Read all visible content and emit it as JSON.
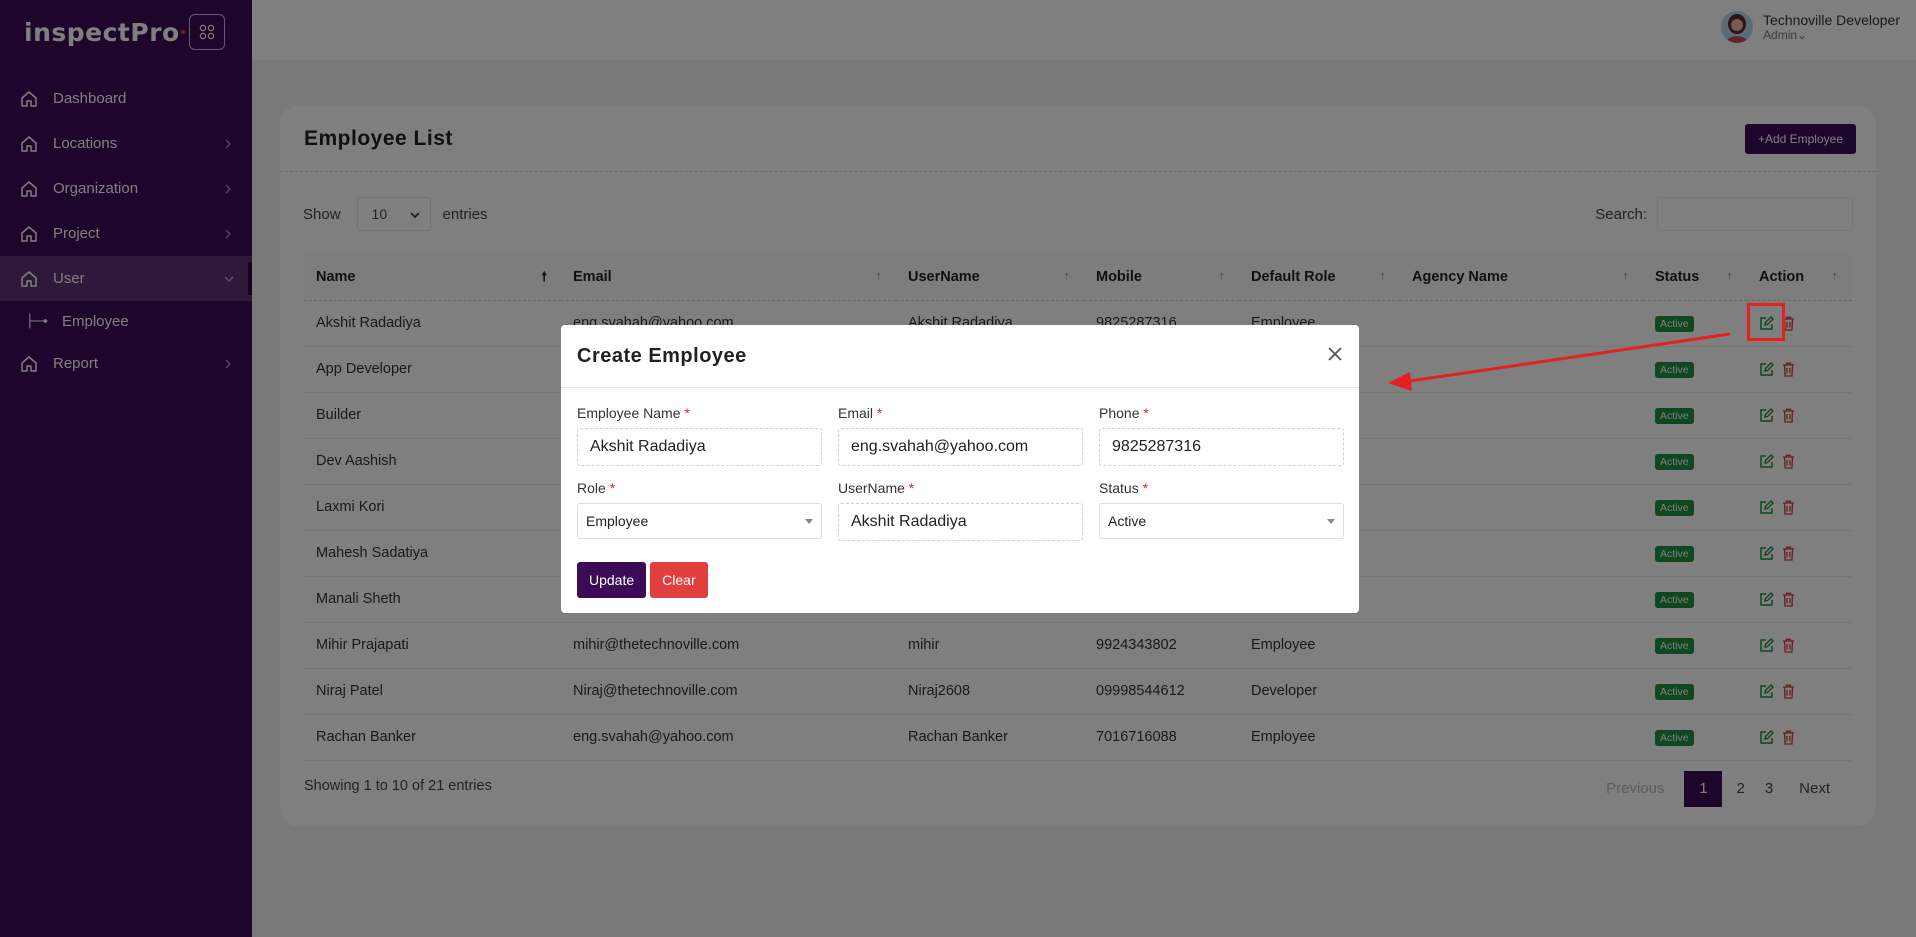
{
  "app": {
    "logo": "inspectPro"
  },
  "sidebar": {
    "items": [
      {
        "label": "Dashboard",
        "icon": "home-icon",
        "has_children": false
      },
      {
        "label": "Locations",
        "icon": "home-icon",
        "has_children": true
      },
      {
        "label": "Organization",
        "icon": "home-icon",
        "has_children": true
      },
      {
        "label": "Project",
        "icon": "home-icon",
        "has_children": true
      },
      {
        "label": "User",
        "icon": "home-icon",
        "has_children": true,
        "expanded": true
      },
      {
        "label": "Report",
        "icon": "home-icon",
        "has_children": true
      }
    ],
    "subitem": {
      "label": "Employee"
    }
  },
  "header": {
    "user_name": "Technoville Developer",
    "user_role": "Admin"
  },
  "page": {
    "title": "Employee List",
    "add_button": "+Add Employee",
    "show_label": "Show",
    "entries_value": "10",
    "entries_label": "entries",
    "search_label": "Search:",
    "columns": [
      "Name",
      "Email",
      "UserName",
      "Mobile",
      "Default Role",
      "Agency Name",
      "Status",
      "Action"
    ],
    "rows": [
      {
        "name": "Akshit Radadiya",
        "email": "eng.svahah@yahoo.com",
        "username": "Akshit Radadiya",
        "mobile": "9825287316",
        "role": "Employee",
        "agency": "",
        "status": "Active"
      },
      {
        "name": "App Developer",
        "email": "",
        "username": "",
        "mobile": "",
        "role": "",
        "agency": "",
        "status": "Active"
      },
      {
        "name": "Builder",
        "email": "",
        "username": "",
        "mobile": "",
        "role": "",
        "agency": "",
        "status": "Active"
      },
      {
        "name": "Dev Aashish",
        "email": "",
        "username": "",
        "mobile": "",
        "role": "",
        "agency": "",
        "status": "Active"
      },
      {
        "name": "Laxmi Kori",
        "email": "",
        "username": "",
        "mobile": "",
        "role": "",
        "agency": "",
        "status": "Active"
      },
      {
        "name": "Mahesh Sadatiya",
        "email": "",
        "username": "",
        "mobile": "",
        "role": "",
        "agency": "",
        "status": "Active"
      },
      {
        "name": "Manali Sheth",
        "email": "",
        "username": "",
        "mobile": "",
        "role": "",
        "agency": "",
        "status": "Active"
      },
      {
        "name": "Mihir Prajapati",
        "email": "mihir@thetechnoville.com",
        "username": "mihir",
        "mobile": "9924343802",
        "role": "Employee",
        "agency": "",
        "status": "Active"
      },
      {
        "name": "Niraj Patel",
        "email": "Niraj@thetechnoville.com",
        "username": "Niraj2608",
        "mobile": "09998544612",
        "role": "Developer",
        "agency": "",
        "status": "Active"
      },
      {
        "name": "Rachan Banker",
        "email": "eng.svahah@yahoo.com",
        "username": "Rachan Banker",
        "mobile": "7016716088",
        "role": "Employee",
        "agency": "",
        "status": "Active"
      }
    ],
    "info": "Showing 1 to 10 of 21 entries",
    "pager": {
      "prev": "Previous",
      "pages": [
        "1",
        "2",
        "3"
      ],
      "current": "1",
      "next": "Next"
    }
  },
  "modal": {
    "title": "Create Employee",
    "fields": {
      "employee_name": {
        "label": "Employee Name",
        "value": "Akshit Radadiya"
      },
      "email": {
        "label": "Email",
        "value": "eng.svahah@yahoo.com"
      },
      "phone": {
        "label": "Phone",
        "value": "9825287316"
      },
      "role": {
        "label": "Role",
        "value": "Employee"
      },
      "username": {
        "label": "UserName",
        "value": "Akshit Radadiya"
      },
      "status": {
        "label": "Status",
        "value": "Active"
      }
    },
    "required_mark": "*",
    "update_button": "Update",
    "clear_button": "Clear"
  },
  "colors": {
    "brand": "#3d0a56",
    "status_active": "#1e8f3f",
    "danger": "#e23f3f",
    "annotation": "#e42020"
  }
}
